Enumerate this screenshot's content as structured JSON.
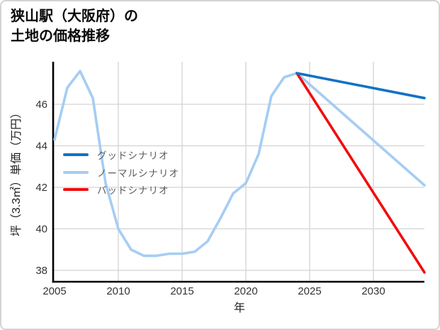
{
  "title": {
    "line1": "狭山駅（大阪府）の",
    "line2": "土地の価格推移"
  },
  "chart_data": {
    "type": "line",
    "title": "狭山駅（大阪府）の土地の価格推移",
    "xlabel": "年",
    "ylabel": "坪（3.3㎡）単価（万円）",
    "xlim": [
      2005,
      2034
    ],
    "ylim": [
      37.45,
      48.05
    ],
    "xticks": [
      2005,
      2010,
      2015,
      2020,
      2025,
      2030
    ],
    "yticks": [
      38,
      40,
      42,
      44,
      46
    ],
    "grid": true,
    "legend_position": "upper-left-inside",
    "colors": {
      "grid": "#d6d6d6",
      "spine": "#000000",
      "tick_label": "#343434",
      "axis_label": "#1f1f1f"
    },
    "series": [
      {
        "name": "グッドシナリオ",
        "color": "#1172c4",
        "x": [
          2024,
          2034
        ],
        "values": [
          47.5,
          46.3
        ]
      },
      {
        "name": "ノーマルシナリオ",
        "color": "#a5cdf3",
        "x": [
          2005,
          2006,
          2007,
          2008,
          2009,
          2010,
          2011,
          2012,
          2013,
          2014,
          2015,
          2016,
          2017,
          2018,
          2019,
          2020,
          2021,
          2022,
          2023,
          2024,
          2034
        ],
        "values": [
          44.3,
          46.8,
          47.6,
          46.3,
          42.2,
          40.0,
          39.0,
          38.7,
          38.7,
          38.8,
          38.8,
          38.9,
          39.4,
          40.5,
          41.7,
          42.2,
          43.6,
          46.4,
          47.3,
          47.5,
          42.1
        ]
      },
      {
        "name": "バッドシナリオ",
        "color": "#f20d0d",
        "x": [
          2024,
          2034
        ],
        "values": [
          47.5,
          37.9
        ]
      }
    ]
  }
}
